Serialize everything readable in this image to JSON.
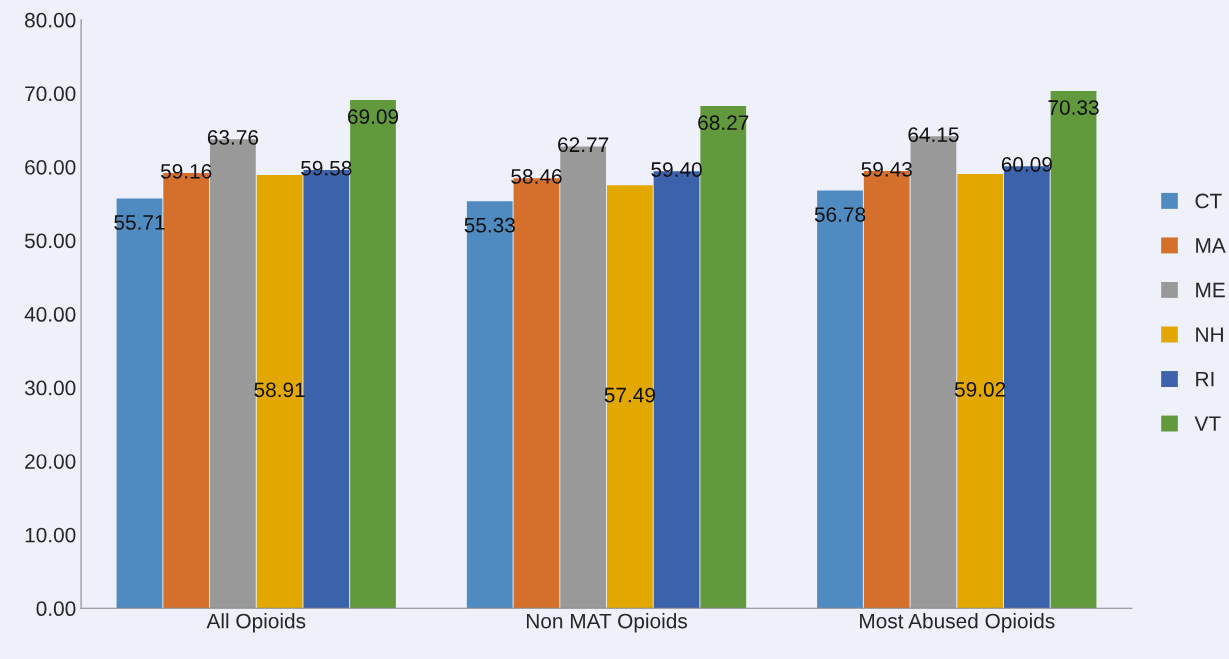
{
  "chart_data": {
    "type": "bar",
    "categories": [
      "All Opioids",
      "Non MAT Opioids",
      "Most Abused Opioids"
    ],
    "series": [
      {
        "name": "CT",
        "color": "#4f8bc0",
        "values": [
          55.71,
          55.33,
          56.78
        ],
        "value_labels": [
          "55.71",
          "55.33",
          "56.78"
        ]
      },
      {
        "name": "MA",
        "color": "#d4702b",
        "values": [
          59.16,
          58.46,
          59.43
        ],
        "value_labels": [
          "59.16",
          "58.46",
          "59.43"
        ]
      },
      {
        "name": "ME",
        "color": "#999999",
        "values": [
          63.76,
          62.77,
          64.15
        ],
        "value_labels": [
          "63.76",
          "62.77",
          "64.15"
        ]
      },
      {
        "name": "NH",
        "color": "#e2a800",
        "values": [
          58.91,
          57.49,
          59.02
        ],
        "value_labels": [
          "58.91",
          "57.49",
          "59.02"
        ]
      },
      {
        "name": "RI",
        "color": "#3c62ab",
        "values": [
          59.58,
          59.4,
          60.09
        ],
        "value_labels": [
          "59.58",
          "59.40",
          "60.09"
        ]
      },
      {
        "name": "VT",
        "color": "#62993d",
        "values": [
          69.09,
          68.27,
          70.33
        ],
        "value_labels": [
          "69.09",
          "68.27",
          "70.33"
        ]
      }
    ],
    "ylim": [
      0,
      80
    ],
    "yticks": [
      {
        "value": 0,
        "label": "0.00"
      },
      {
        "value": 10,
        "label": "10.00"
      },
      {
        "value": 20,
        "label": "20.00"
      },
      {
        "value": 30,
        "label": "30.00"
      },
      {
        "value": 40,
        "label": "40.00"
      },
      {
        "value": 50,
        "label": "50.00"
      },
      {
        "value": 60,
        "label": "60.00"
      },
      {
        "value": 70,
        "label": "70.00"
      },
      {
        "value": 80,
        "label": "80.00"
      }
    ],
    "legend": "right",
    "grid": false
  }
}
